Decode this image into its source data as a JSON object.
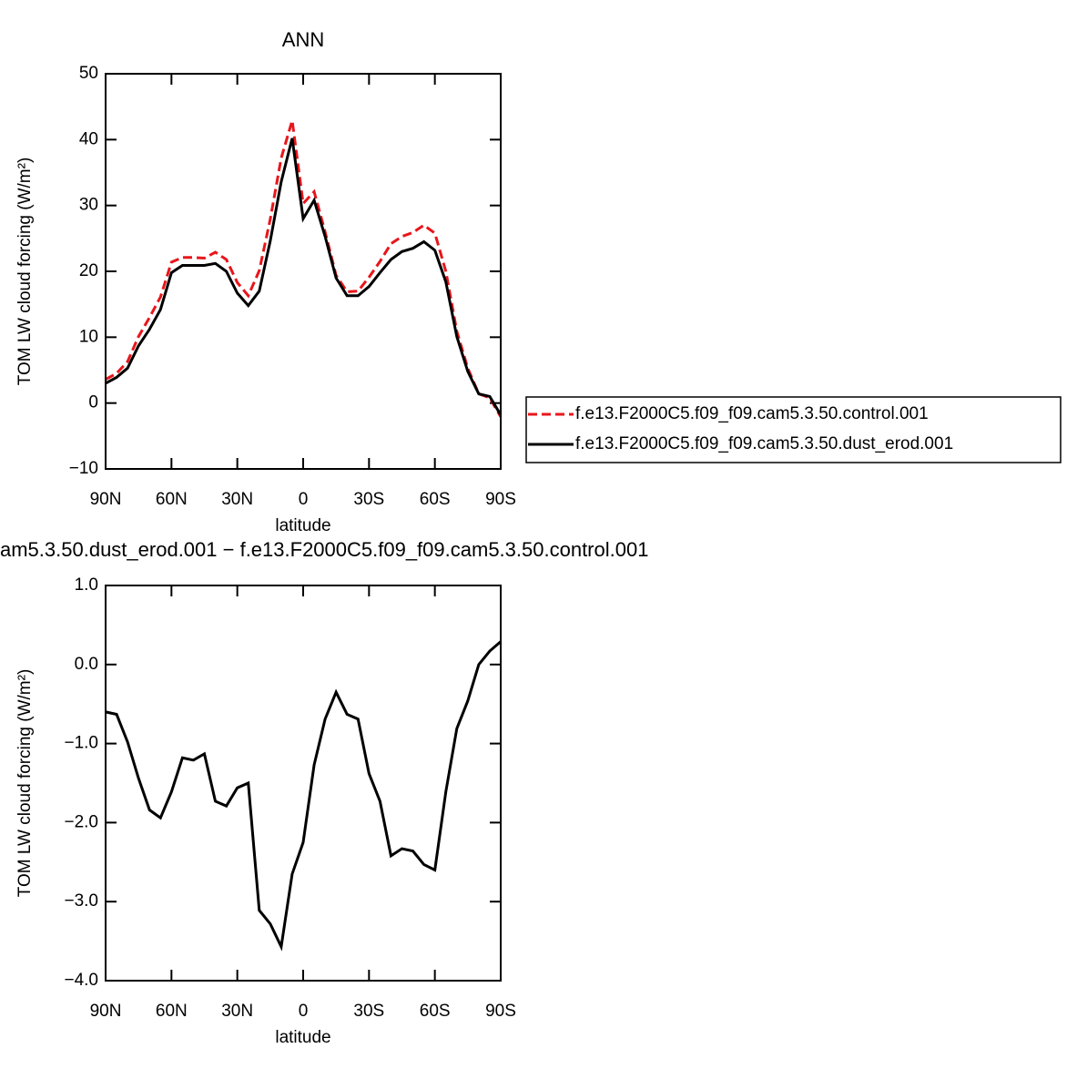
{
  "chart_data": [
    {
      "type": "line",
      "title": "ANN",
      "xlabel": "latitude",
      "ylabel": "TOM LW cloud forcing (W/m²)",
      "x": [
        90,
        85,
        80,
        75,
        70,
        65,
        60,
        55,
        50,
        45,
        40,
        35,
        30,
        25,
        20,
        15,
        10,
        5,
        0,
        -5,
        -10,
        -15,
        -20,
        -25,
        -30,
        -35,
        -40,
        -45,
        -50,
        -55,
        -60,
        -65,
        -70,
        -75,
        -80,
        -85,
        -90
      ],
      "xlim": [
        90,
        -90
      ],
      "xticks": [
        {
          "value": 90,
          "label": "90N"
        },
        {
          "value": 60,
          "label": "60N"
        },
        {
          "value": 30,
          "label": "30N"
        },
        0,
        {
          "value": -30,
          "label": "30S"
        },
        {
          "value": -60,
          "label": "60S"
        },
        {
          "value": -90,
          "label": "90S"
        }
      ],
      "ylim": [
        -10,
        50
      ],
      "yticks": [
        {
          "value": -10,
          "label": "−10"
        },
        0,
        10,
        20,
        30,
        40,
        50
      ],
      "legend": "right",
      "series": [
        {
          "name": "f.e13.F2000C5.f09_f09.cam5.3.50.control.001",
          "color": "#e8161b",
          "style": "dashed",
          "values": [
            3.6,
            4.5,
            6.3,
            10.1,
            13.0,
            16.1,
            21.4,
            22.1,
            22.1,
            22.0,
            22.9,
            21.8,
            18.3,
            16.3,
            20.1,
            27.9,
            37.2,
            42.9,
            30.3,
            32.1,
            26.0,
            19.4,
            16.9,
            17.0,
            19.1,
            21.5,
            24.2,
            25.3,
            25.9,
            27.0,
            25.8,
            20.0,
            10.9,
            5.3,
            1.4,
            0.8,
            -2.1
          ]
        },
        {
          "name": "f.e13.F2000C5.f09_f09.cam5.3.50.dust_erod.001",
          "color": "#000000",
          "style": "solid",
          "values": [
            3.0,
            3.9,
            5.3,
            8.7,
            11.2,
            14.2,
            19.8,
            20.9,
            20.9,
            20.9,
            21.2,
            20.0,
            16.7,
            14.8,
            17.0,
            24.6,
            33.6,
            40.2,
            28.0,
            30.8,
            25.3,
            19.0,
            16.3,
            16.3,
            17.7,
            19.8,
            21.8,
            23.0,
            23.5,
            24.5,
            23.2,
            18.4,
            10.1,
            4.8,
            1.4,
            1.0,
            -1.8
          ]
        }
      ]
    },
    {
      "type": "line",
      "title": "am5.3.50.dust_erod.001 − f.e13.F2000C5.f09_f09.cam5.3.50.control.001",
      "xlabel": "latitude",
      "ylabel": "TOM LW cloud forcing (W/m²)",
      "x": [
        90,
        85,
        80,
        75,
        70,
        65,
        60,
        55,
        50,
        45,
        40,
        35,
        30,
        25,
        20,
        15,
        10,
        5,
        0,
        -5,
        -10,
        -15,
        -20,
        -25,
        -30,
        -35,
        -40,
        -45,
        -50,
        -55,
        -60,
        -65,
        -70,
        -75,
        -80,
        -85,
        -90
      ],
      "xlim": [
        90,
        -90
      ],
      "xticks": [
        {
          "value": 90,
          "label": "90N"
        },
        {
          "value": 60,
          "label": "60N"
        },
        {
          "value": 30,
          "label": "30N"
        },
        0,
        {
          "value": -30,
          "label": "30S"
        },
        {
          "value": -60,
          "label": "60S"
        },
        {
          "value": -90,
          "label": "90S"
        }
      ],
      "ylim": [
        -4,
        1
      ],
      "yticks": [
        {
          "value": -4,
          "label": "−4.0"
        },
        {
          "value": -3,
          "label": "−3.0"
        },
        {
          "value": -2,
          "label": "−2.0"
        },
        {
          "value": -1,
          "label": "−1.0"
        },
        {
          "value": 0,
          "label": "0.0"
        },
        {
          "value": 1,
          "label": "1.0"
        }
      ],
      "color": "#000000",
      "values": [
        -0.6,
        -0.63,
        -0.98,
        -1.44,
        -1.84,
        -1.94,
        -1.61,
        -1.18,
        -1.21,
        -1.13,
        -1.73,
        -1.79,
        -1.56,
        -1.5,
        -3.11,
        -3.28,
        -3.57,
        -2.65,
        -2.25,
        -1.27,
        -0.69,
        -0.35,
        -0.63,
        -0.69,
        -1.38,
        -1.73,
        -2.42,
        -2.33,
        -2.36,
        -2.53,
        -2.6,
        -1.61,
        -0.81,
        -0.46,
        0,
        0.17,
        0.29
      ]
    }
  ]
}
